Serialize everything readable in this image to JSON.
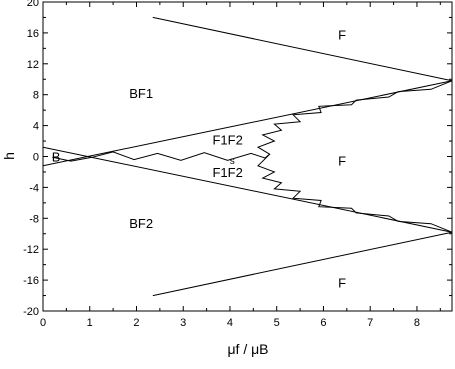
{
  "chart_data": {
    "type": "line",
    "title": "",
    "xlabel": "μf / μB",
    "ylabel": "h",
    "xlim": [
      0,
      8.75
    ],
    "ylim": [
      -20,
      20
    ],
    "grid": false,
    "legend": "none",
    "x_ticks": [
      "0",
      "1",
      "2",
      "3",
      "4",
      "5",
      "6",
      "7",
      "8"
    ],
    "y_ticks": [
      "20",
      "16",
      "12",
      "8",
      "4",
      "0",
      "-4",
      "-8",
      "-12",
      "-16",
      "-20"
    ],
    "series": [
      {
        "points": [
          [
            2.35,
            18.0
          ],
          [
            8.75,
            9.8
          ]
        ]
      },
      {
        "points": [
          [
            2.35,
            -18.0
          ],
          [
            8.75,
            -9.8
          ]
        ]
      },
      {
        "points": [
          [
            0,
            -1.2
          ],
          [
            8.75,
            9.8
          ]
        ]
      },
      {
        "points": [
          [
            0,
            1.2
          ],
          [
            8.75,
            -9.8
          ]
        ]
      },
      {
        "points": [
          [
            0.2,
            -0.1
          ],
          [
            0.6,
            -0.6
          ],
          [
            1.05,
            -0.1
          ],
          [
            1.5,
            0.6
          ],
          [
            1.95,
            -0.4
          ],
          [
            2.45,
            0.4
          ],
          [
            2.95,
            -0.5
          ],
          [
            3.45,
            0.5
          ],
          [
            3.95,
            -0.5
          ],
          [
            4.45,
            0.4
          ],
          [
            4.75,
            -0.2
          ],
          [
            4.85,
            0.3
          ],
          [
            4.6,
            1.2
          ],
          [
            4.95,
            2.0
          ],
          [
            4.7,
            2.8
          ],
          [
            5.1,
            3.4
          ],
          [
            4.95,
            4.2
          ],
          [
            5.5,
            4.5
          ],
          [
            5.35,
            5.4
          ],
          [
            5.95,
            5.7
          ],
          [
            5.9,
            6.5
          ],
          [
            6.6,
            6.7
          ],
          [
            6.7,
            7.3
          ],
          [
            7.4,
            7.7
          ],
          [
            7.6,
            8.4
          ],
          [
            8.3,
            8.7
          ],
          [
            8.75,
            9.8
          ]
        ]
      },
      {
        "points": [
          [
            4.85,
            0.3
          ],
          [
            4.6,
            -1.2
          ],
          [
            4.95,
            -2.0
          ],
          [
            4.7,
            -2.8
          ],
          [
            5.1,
            -3.4
          ],
          [
            4.95,
            -4.2
          ],
          [
            5.5,
            -4.5
          ],
          [
            5.35,
            -5.4
          ],
          [
            5.95,
            -5.7
          ],
          [
            5.9,
            -6.5
          ],
          [
            6.6,
            -6.7
          ],
          [
            6.7,
            -7.3
          ],
          [
            7.4,
            -7.7
          ],
          [
            7.6,
            -8.4
          ],
          [
            8.3,
            -8.7
          ],
          [
            8.75,
            -9.8
          ]
        ]
      }
    ],
    "annotations": [
      {
        "text": "F",
        "x": 6.4,
        "y": 15.8
      },
      {
        "text": "F",
        "x": 6.4,
        "y": -0.5
      },
      {
        "text": "F",
        "x": 6.4,
        "y": -16.3
      },
      {
        "text": "BF1",
        "x": 2.1,
        "y": 8.2
      },
      {
        "text": "BF2",
        "x": 2.1,
        "y": -8.6
      },
      {
        "text": "B",
        "x": 0.28,
        "y": 0.0
      },
      {
        "text": "F1F2",
        "x": 3.95,
        "y": 2.2
      },
      {
        "text": "F1F2",
        "x": 3.95,
        "y": -2.0
      },
      {
        "text": "s",
        "x": 4.05,
        "y": -0.3
      }
    ]
  }
}
